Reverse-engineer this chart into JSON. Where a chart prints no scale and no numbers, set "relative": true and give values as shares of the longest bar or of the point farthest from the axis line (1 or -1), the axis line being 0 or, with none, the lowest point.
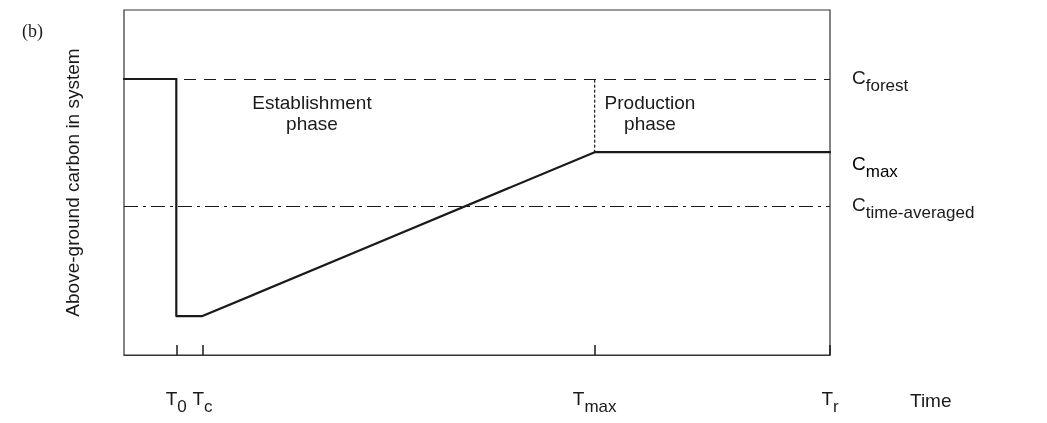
{
  "chart_data": {
    "type": "line",
    "relative": true,
    "xlabel": "Time",
    "ylabel": "Above-ground carbon in system",
    "categories": [
      null,
      null,
      "T$_{0}$",
      "T$_{c}$",
      null,
      null,
      null,
      null,
      null,
      null,
      null,
      null,
      null,
      null,
      null,
      null,
      null,
      null,
      "T$_{max}$",
      null,
      null,
      null,
      null,
      null,
      null,
      null,
      null,
      "T$_{r}$"
    ],
    "series": [
      {
        "color": "#1a1a1a",
        "values": [
          1,
          1,
          1,
          null,
          null,
          null,
          null,
          null,
          null,
          null,
          null,
          null,
          null,
          null,
          null,
          null,
          null,
          null,
          null,
          null,
          null,
          null,
          null,
          null,
          null,
          null,
          null,
          null
        ],
        "line_style": "solid"
      },
      {
        "x": [
          "T$_{0}$",
          "T$_{0}$",
          "T$_{c}$",
          "T$_{max}$",
          "T$_{r}$"
        ],
        "color": "#1a1a1a",
        "values": [
          1,
          0.141,
          0.141,
          0.735,
          0.735
        ],
        "line_style": "solid"
      },
      {
        "x": [
          "T$_{max}$",
          "T$_{max}$"
        ],
        "color": "#1a1a1a",
        "values": [
          0.735,
          1
        ],
        "line_style": "dotted"
      }
    ],
    "ref_lines": [
      {
        "axis": "y",
        "value": 1,
        "label": "C$_{forest}$",
        "line_style": "dashed",
        "color": "#1a1a1a"
      },
      {
        "axis": "y",
        "value": 0.543,
        "label": "C$_{time-averaged}$",
        "line_style": "dashdot",
        "color": "#1a1a1a"
      }
    ],
    "annotations": [
      "(b)",
      "Establishment\nphase",
      "Production\nphase",
      {
        "text": "C$_{max}$",
        "x": "T$_{r}$",
        "y": 0.735
      }
    ],
    "marker": "none"
  }
}
